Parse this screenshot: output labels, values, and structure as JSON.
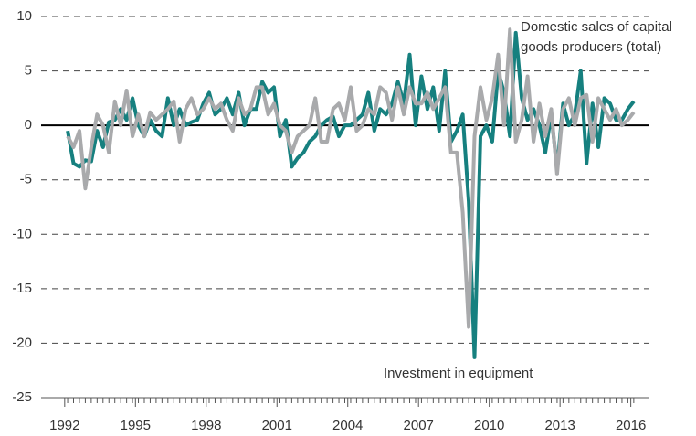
{
  "chart_data": {
    "type": "line",
    "x": [
      1992.125,
      1992.375,
      1992.625,
      1992.875,
      1993.125,
      1993.375,
      1993.625,
      1993.875,
      1994.125,
      1994.375,
      1994.625,
      1994.875,
      1995.125,
      1995.375,
      1995.625,
      1995.875,
      1996.125,
      1996.375,
      1996.625,
      1996.875,
      1997.125,
      1997.375,
      1997.625,
      1997.875,
      1998.125,
      1998.375,
      1998.625,
      1998.875,
      1999.125,
      1999.375,
      1999.625,
      1999.875,
      2000.125,
      2000.375,
      2000.625,
      2000.875,
      2001.125,
      2001.375,
      2001.625,
      2001.875,
      2002.125,
      2002.375,
      2002.625,
      2002.875,
      2003.125,
      2003.375,
      2003.625,
      2003.875,
      2004.125,
      2004.375,
      2004.625,
      2004.875,
      2005.125,
      2005.375,
      2005.625,
      2005.875,
      2006.125,
      2006.375,
      2006.625,
      2006.875,
      2007.125,
      2007.375,
      2007.625,
      2007.875,
      2008.125,
      2008.375,
      2008.625,
      2008.875,
      2009.125,
      2009.375,
      2009.625,
      2009.875,
      2010.125,
      2010.375,
      2010.625,
      2010.875,
      2011.125,
      2011.375,
      2011.625,
      2011.875,
      2012.125,
      2012.375,
      2012.625,
      2012.875,
      2013.125,
      2013.375,
      2013.625,
      2013.875,
      2014.125,
      2014.375,
      2014.625,
      2014.875,
      2015.125,
      2015.375,
      2015.625,
      2015.875,
      2016.125
    ],
    "series": [
      {
        "name": "Investment in equipment",
        "color": "#16807f",
        "values": [
          -0.5,
          -3.5,
          -3.8,
          -3.2,
          -3.3,
          -0.5,
          -2,
          0.3,
          0.5,
          1.5,
          0.5,
          2.5,
          0,
          -1,
          0.5,
          -0.5,
          -1,
          2.5,
          0,
          1.5,
          0,
          0.3,
          0.5,
          2,
          3,
          1,
          1.5,
          2.5,
          1,
          3,
          0,
          1.5,
          1.5,
          4,
          3,
          3.5,
          -1,
          0.5,
          -3.8,
          -3,
          -2.5,
          -1.5,
          -1,
          0,
          0.5,
          0.8,
          -1,
          0,
          0,
          0.5,
          1,
          3,
          -0.5,
          1.5,
          1,
          2,
          4,
          2,
          6.5,
          0,
          4.5,
          1.5,
          3.5,
          -0.5,
          5,
          -1.5,
          -0.5,
          1,
          -7,
          -21.3,
          -1,
          0,
          -1.5,
          5,
          3,
          -1,
          8.5,
          2.5,
          0.5,
          1.5,
          0,
          -2.5,
          1,
          -4,
          2,
          0,
          1,
          5,
          -3.5,
          2,
          -2,
          2.5,
          2,
          0.5,
          0.5,
          1.5,
          2.2
        ]
      },
      {
        "name": "Domestic sales of capital goods producers (total)",
        "color": "#a9aaac",
        "values": [
          -1,
          -2,
          -0.5,
          -5.8,
          -2,
          1,
          0,
          -2.5,
          2.2,
          0,
          3.2,
          -1,
          1,
          -1,
          1.2,
          0.5,
          1,
          1.5,
          2.2,
          -1.5,
          1.5,
          2.5,
          1,
          1.5,
          2.5,
          1.5,
          2,
          0.5,
          -0.5,
          2.5,
          1,
          1.5,
          3.5,
          3.5,
          1,
          2,
          0,
          -0.5,
          -2.5,
          -1,
          -0.5,
          0,
          2.5,
          -1.5,
          -1.5,
          1.5,
          2,
          0.5,
          3.5,
          -0.5,
          0,
          1.5,
          1,
          3.5,
          3,
          0.5,
          3.5,
          1,
          3.5,
          2,
          2,
          3,
          1.5,
          2.5,
          3.5,
          -2.5,
          -2.5,
          -8,
          -18.5,
          -1,
          3.5,
          0.5,
          2.5,
          6.5,
          0,
          8.8,
          -1.5,
          0.5,
          4.5,
          -1.5,
          2,
          -1,
          1.5,
          -4.5,
          1.5,
          2.5,
          0,
          2.5,
          2.8,
          -1.5,
          2.5,
          1.5,
          0.5,
          1.5,
          0,
          0.5,
          1.2
        ]
      }
    ],
    "xlim": [
      1991,
      2016.75
    ],
    "xticks": [
      1992,
      1995,
      1998,
      2001,
      2004,
      2007,
      2010,
      2013,
      2016
    ],
    "ylim": [
      -25,
      10
    ],
    "yticks": [
      -25,
      -20,
      -15,
      -10,
      -5,
      0,
      5,
      10
    ],
    "grid": true
  }
}
